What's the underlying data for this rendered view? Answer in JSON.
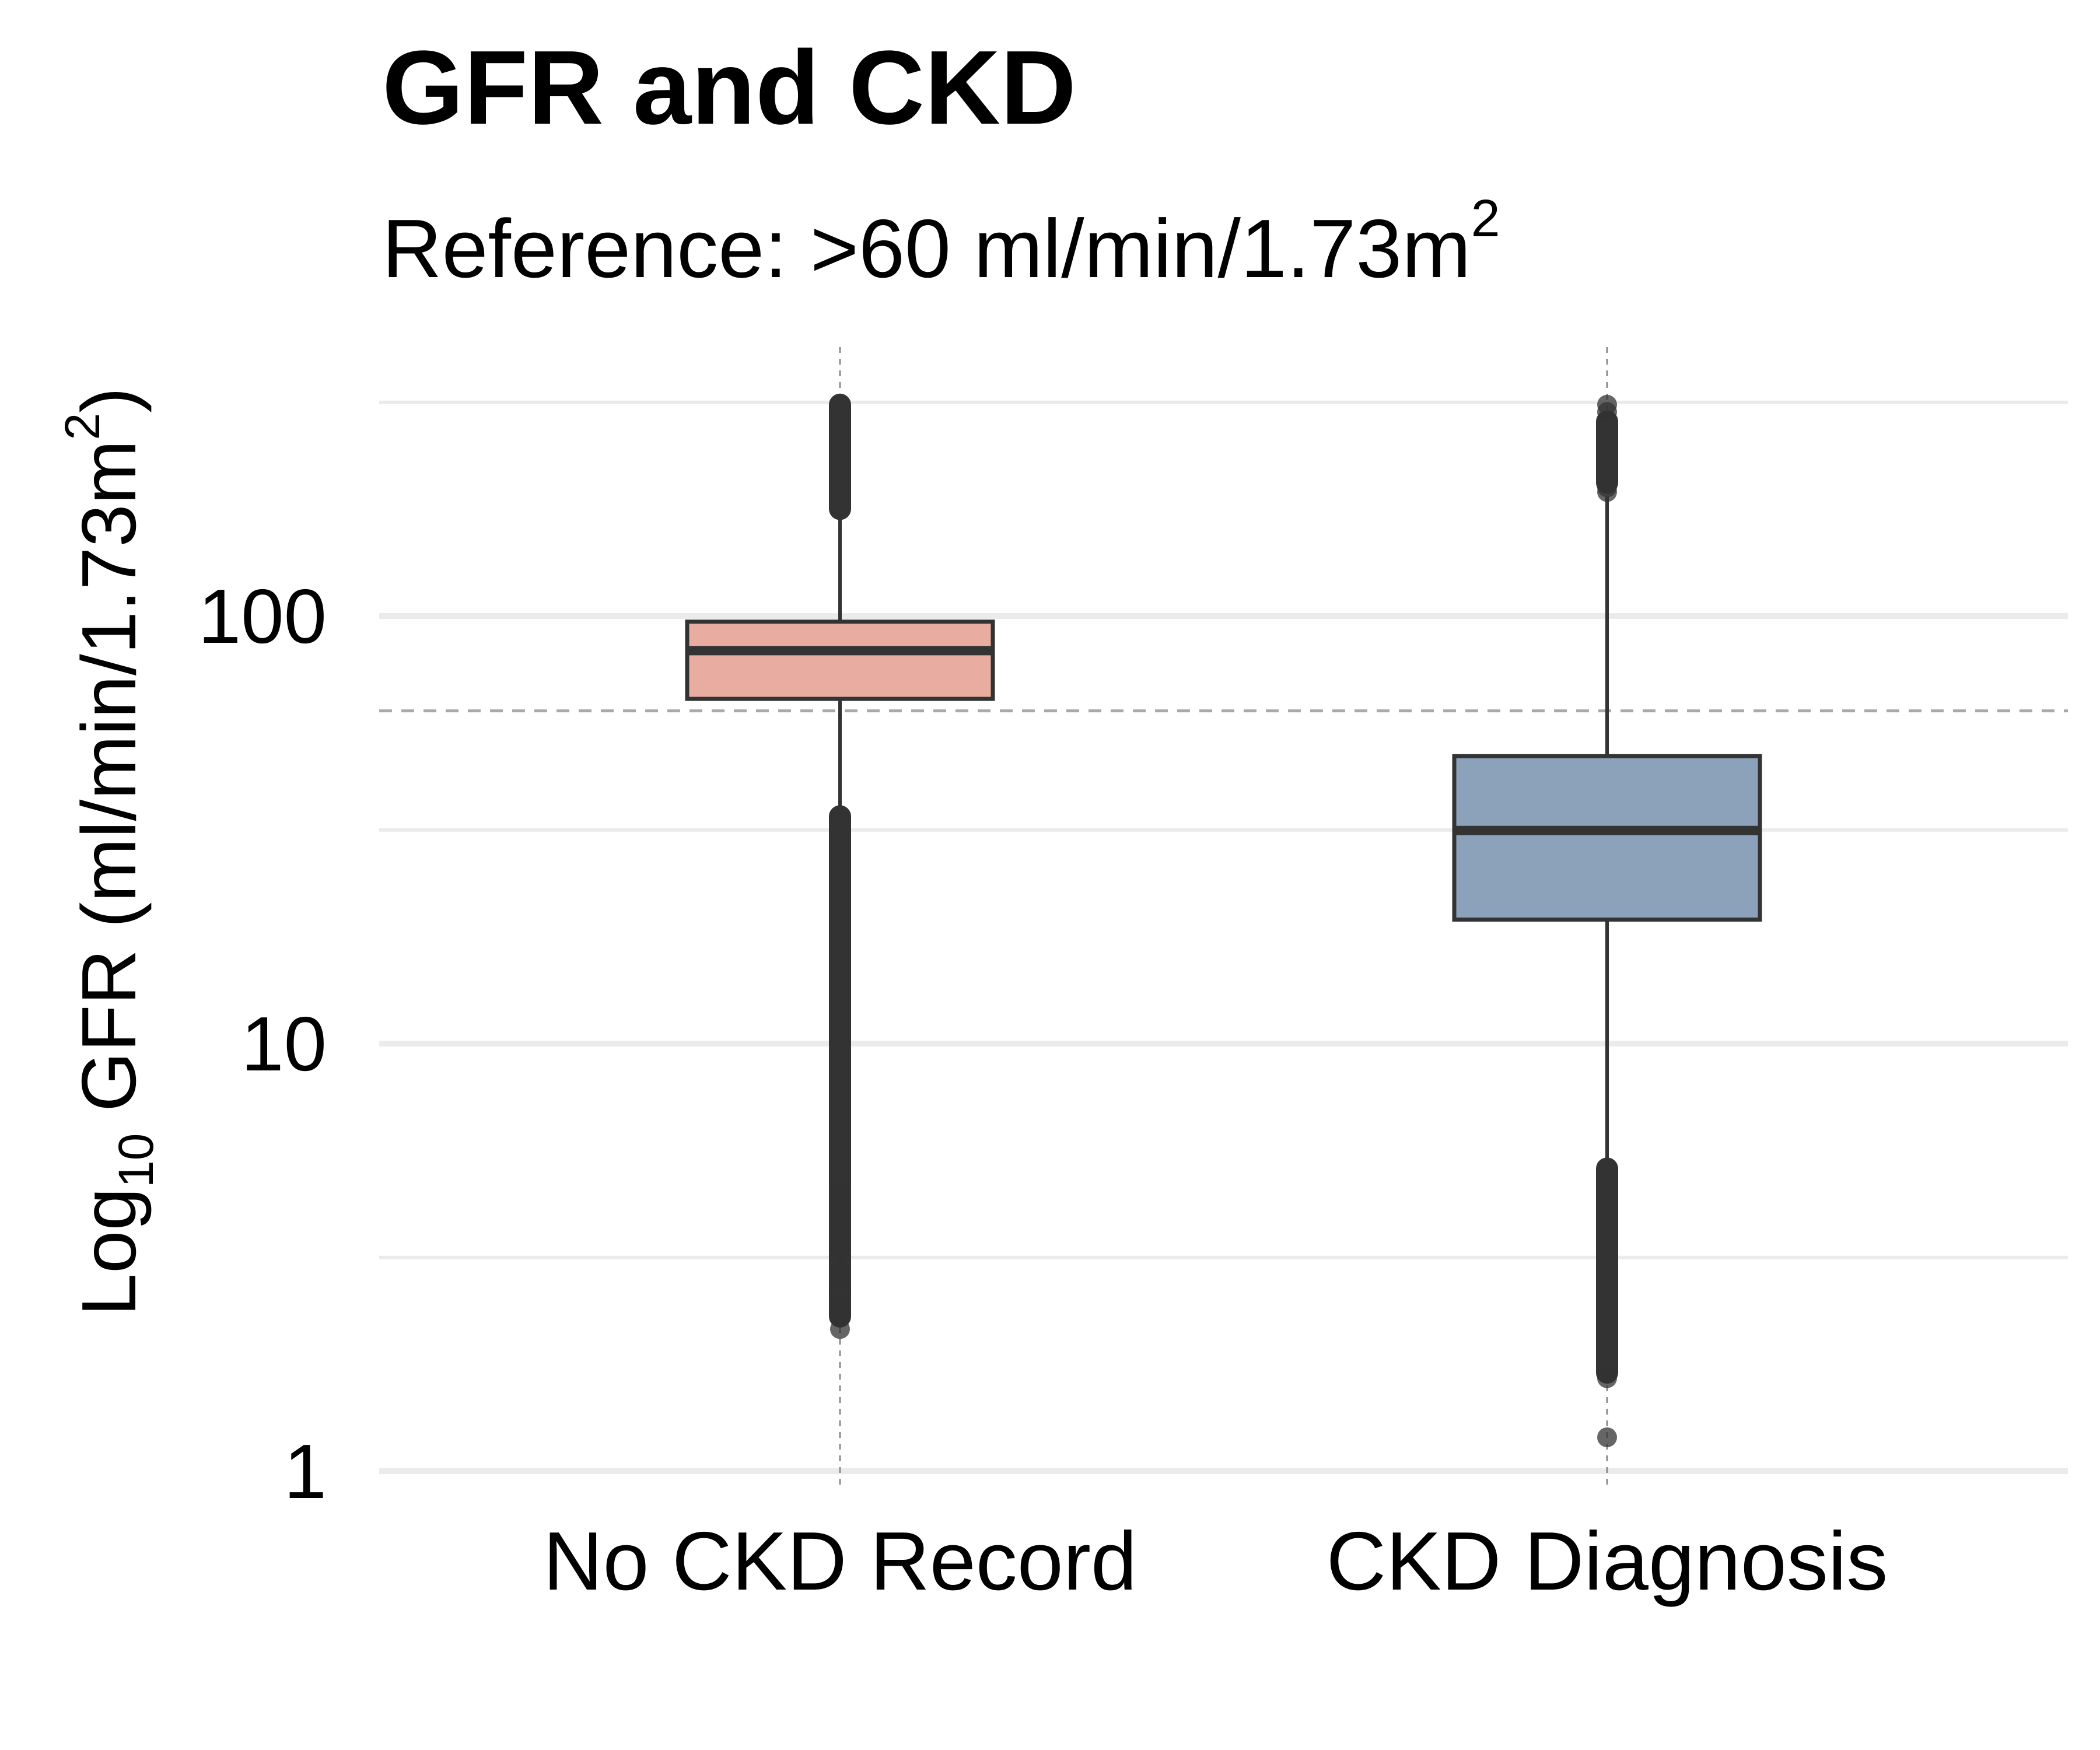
{
  "chart_data": {
    "type": "box",
    "title": "GFR and CKD",
    "subtitle": {
      "text": "Reference: >60 ml/min/1.73m",
      "superscript": "2"
    },
    "ylabel": {
      "prefix": "Log",
      "subscript": "10",
      "text": " GFR (ml/min/1.73m",
      "superscript": "2",
      "suffix": ")"
    },
    "y_scale": "log10",
    "ylim": [
      0.88,
      400
    ],
    "yticks": [
      {
        "value": 1,
        "label": "1"
      },
      {
        "value": 10,
        "label": "10"
      },
      {
        "value": 100,
        "label": "100"
      }
    ],
    "minor_gridlines": [
      3.16,
      31.6,
      316
    ],
    "reference_line": {
      "value": 60,
      "style": "dashed"
    },
    "categories": [
      "No CKD Record",
      "CKD Diagnosis"
    ],
    "boxes": [
      {
        "category": "No CKD Record",
        "color": "#E8ADA0",
        "q1": 64,
        "median": 83,
        "q3": 97,
        "whisker_low": 34,
        "whisker_high": 178,
        "outlier_bands": [
          [
            34,
            2.3
          ],
          [
            178,
            312
          ]
        ],
        "outliers": [
          2.15,
          2.35,
          2.45,
          2.8,
          2.95,
          3.3,
          3.5,
          3.8,
          4.1,
          4.5
        ]
      },
      {
        "category": "CKD Diagnosis",
        "color": "#8BA2BA",
        "q1": 19.5,
        "median": 31.5,
        "q3": 47,
        "whisker_low": 5.1,
        "whisker_high": 190,
        "outlier_bands": [
          [
            5.1,
            1.7
          ],
          [
            205,
            285
          ]
        ],
        "outliers": [
          1.2,
          1.65,
          195,
          200,
          300,
          312
        ]
      }
    ],
    "grid": true,
    "legend": "none"
  }
}
